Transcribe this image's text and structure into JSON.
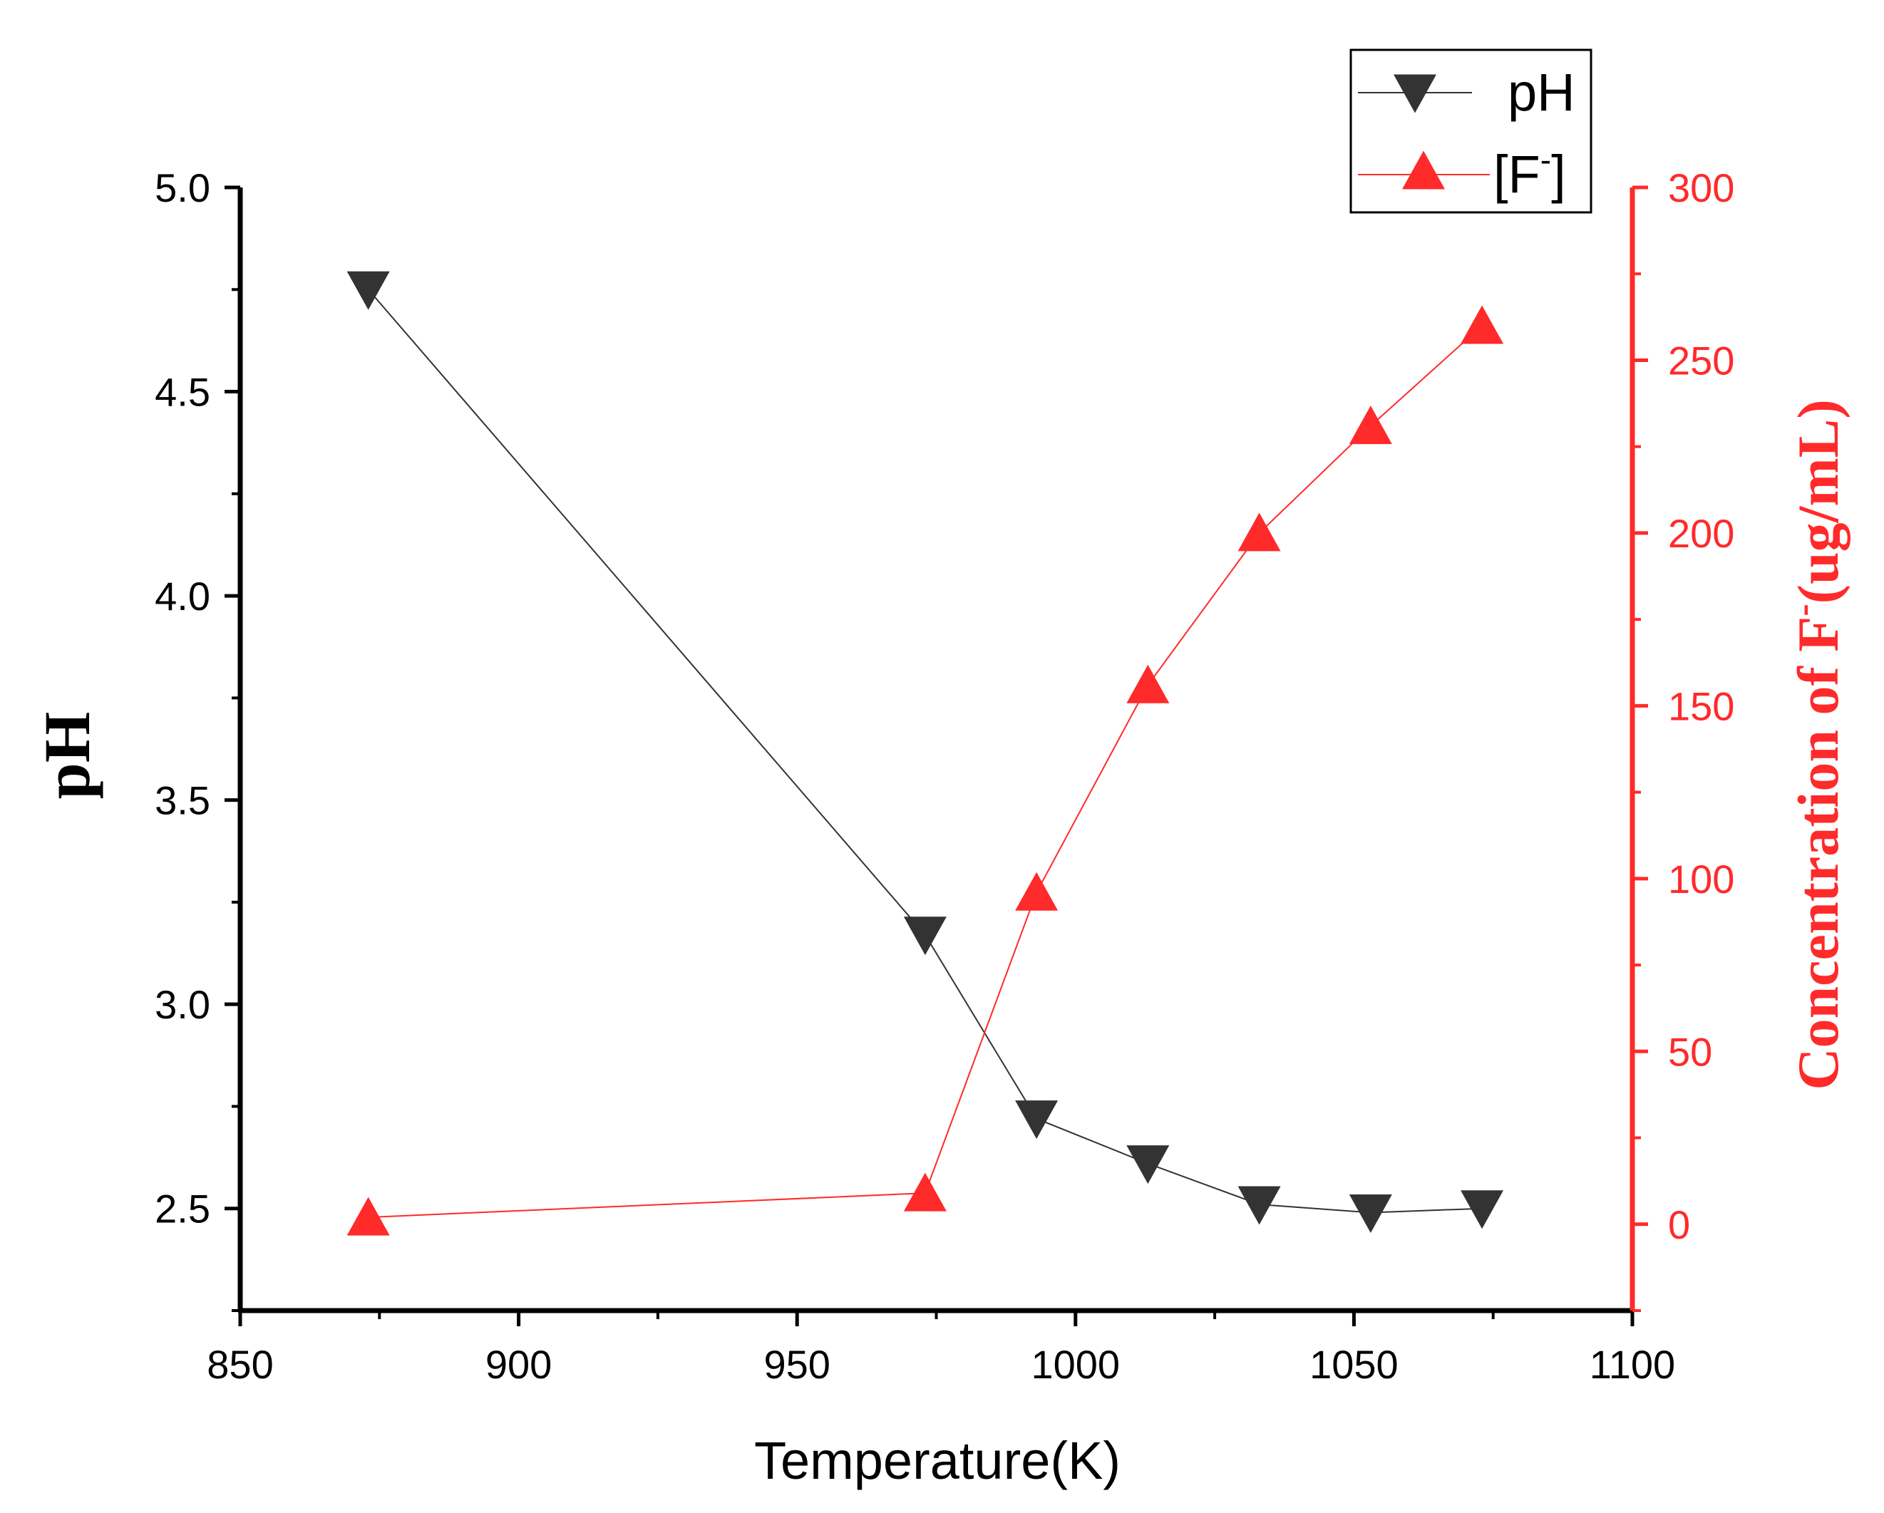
{
  "chart_data": {
    "type": "line",
    "title": "",
    "xlabel": "Temperature(K)",
    "ylabel_left": "pH",
    "ylabel_right": {
      "prefix": "Concentration of F",
      "sup": "-",
      "suffix": "(ug/mL)"
    },
    "xlim": [
      850,
      1100
    ],
    "ylim_left": [
      2.25,
      5.0
    ],
    "ylim_right": [
      -25,
      300
    ],
    "x_ticks": [
      "850",
      "900",
      "950",
      "1000",
      "1050",
      "1100"
    ],
    "y_left_ticks": [
      "2.5",
      "3.0",
      "3.5",
      "4.0",
      "4.5",
      "5.0"
    ],
    "y_right_ticks": [
      "0",
      "50",
      "100",
      "150",
      "200",
      "250",
      "300"
    ],
    "legend_position": "top-right",
    "series": [
      {
        "name": "pH",
        "legend_label": "pH",
        "axis": "left",
        "color": "#333333",
        "marker": "triangle-down",
        "x": [
          873,
          973,
          993,
          1013,
          1033,
          1053,
          1073
        ],
        "y": [
          4.75,
          3.17,
          2.72,
          2.61,
          2.51,
          2.49,
          2.5
        ]
      },
      {
        "name": "[F-]",
        "legend_label": {
          "prefix": "[F",
          "sup": "-",
          "suffix": "]"
        },
        "axis": "right",
        "color": "#ff2a2a",
        "marker": "triangle-up",
        "x": [
          873,
          973,
          993,
          1013,
          1033,
          1053,
          1073
        ],
        "y": [
          2,
          9,
          96,
          156,
          200,
          231,
          260
        ]
      }
    ]
  }
}
